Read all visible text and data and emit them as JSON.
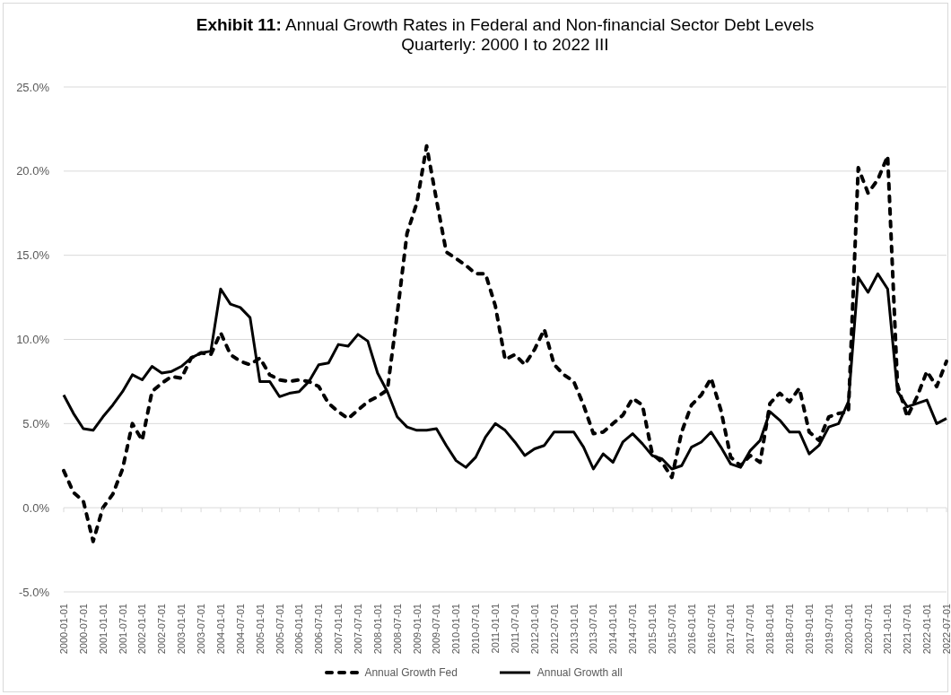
{
  "chart_data": {
    "type": "line",
    "title": "Exhibit 11: Annual Growth Rates in Federal and Non-financial Sector Debt Levels",
    "subtitle": "Quarterly: 2000 I to 2022 III",
    "categories": [
      "2000-01-01",
      null,
      "2000-07-01",
      null,
      "2001-01-01",
      null,
      "2001-07-01",
      null,
      "2002-01-01",
      null,
      "2002-07-01",
      null,
      "2003-01-01",
      null,
      "2003-07-01",
      null,
      "2004-01-01",
      null,
      "2004-07-01",
      null,
      "2005-01-01",
      null,
      "2005-07-01",
      null,
      "2006-01-01",
      null,
      "2006-07-01",
      null,
      "2007-01-01",
      null,
      "2007-07-01",
      null,
      "2008-01-01",
      null,
      "2008-07-01",
      null,
      "2009-01-01",
      null,
      "2009-07-01",
      null,
      "2010-01-01",
      null,
      "2010-07-01",
      null,
      "2011-01-01",
      null,
      "2011-07-01",
      null,
      "2012-01-01",
      null,
      "2012-07-01",
      null,
      "2013-01-01",
      null,
      "2013-07-01",
      null,
      "2014-01-01",
      null,
      "2014-07-01",
      null,
      "2015-01-01",
      null,
      "2015-07-01",
      null,
      "2016-01-01",
      null,
      "2016-07-01",
      null,
      "2017-01-01",
      null,
      "2017-07-01",
      null,
      "2018-01-01",
      null,
      "2018-07-01",
      null,
      "2019-01-01",
      null,
      "2019-07-01",
      null,
      "2020-01-01",
      null,
      "2020-07-01",
      null,
      "2021-01-01",
      null,
      "2021-07-01",
      null,
      "2022-01-01",
      null,
      "2022-07-01"
    ],
    "series": [
      {
        "name": "Annual Growth Fed",
        "color": "#000000",
        "line_style": "dashed",
        "values": [
          2.2,
          0.9,
          0.4,
          -2.0,
          0.0,
          0.8,
          2.3,
          5.0,
          4.0,
          6.9,
          7.4,
          7.8,
          7.7,
          8.9,
          9.2,
          9.1,
          10.4,
          9.1,
          8.7,
          8.5,
          8.9,
          7.9,
          7.6,
          7.5,
          7.6,
          7.5,
          7.2,
          6.2,
          5.7,
          5.3,
          5.8,
          6.3,
          6.6,
          7.0,
          11.5,
          16.3,
          18.1,
          21.5,
          18.3,
          15.2,
          14.8,
          14.4,
          13.9,
          13.9,
          12.0,
          8.8,
          9.1,
          8.5,
          9.4,
          10.6,
          8.5,
          7.9,
          7.5,
          6.1,
          4.4,
          4.5,
          5.0,
          5.5,
          6.5,
          6.1,
          3.2,
          2.7,
          1.8,
          4.5,
          6.1,
          6.7,
          7.7,
          5.8,
          3.0,
          2.5,
          3.1,
          2.7,
          6.2,
          6.8,
          6.3,
          7.1,
          4.5,
          4.0,
          5.4,
          5.6,
          5.7,
          20.2,
          18.7,
          19.5,
          20.9,
          7.3,
          5.4,
          6.6,
          8.1,
          7.2,
          8.7
        ]
      },
      {
        "name": "Annual Growth all",
        "color": "#000000",
        "line_style": "solid",
        "values": [
          6.7,
          5.6,
          4.7,
          4.6,
          5.4,
          6.1,
          6.9,
          7.9,
          7.6,
          8.4,
          8.0,
          8.1,
          8.4,
          8.9,
          9.2,
          9.3,
          13.0,
          12.1,
          11.9,
          11.3,
          7.5,
          7.5,
          6.6,
          6.8,
          6.9,
          7.5,
          8.5,
          8.6,
          9.7,
          9.6,
          10.3,
          9.9,
          8.0,
          6.9,
          5.4,
          4.8,
          4.6,
          4.6,
          4.7,
          3.7,
          2.8,
          2.4,
          3.0,
          4.2,
          5.0,
          4.6,
          3.9,
          3.1,
          3.5,
          3.7,
          4.5,
          4.5,
          4.5,
          3.6,
          2.3,
          3.2,
          2.7,
          3.9,
          4.4,
          3.8,
          3.1,
          2.9,
          2.3,
          2.5,
          3.6,
          3.9,
          4.5,
          3.6,
          2.6,
          2.4,
          3.4,
          4.0,
          5.7,
          5.2,
          4.5,
          4.5,
          3.2,
          3.7,
          4.8,
          5.0,
          6.3,
          13.7,
          12.8,
          13.9,
          13.0,
          6.9,
          6.0,
          6.2,
          6.4,
          5.0,
          5.3
        ]
      }
    ],
    "ylim": [
      -5,
      25
    ],
    "yticks": [
      {
        "value": -5,
        "label": "-5.0%"
      },
      {
        "value": 0,
        "label": "0.0%"
      },
      {
        "value": 5,
        "label": "5.0%"
      },
      {
        "value": 10,
        "label": "10.0%"
      },
      {
        "value": 15,
        "label": "15.0%"
      },
      {
        "value": 20,
        "label": "20.0%"
      },
      {
        "value": 25,
        "label": "25.0%"
      }
    ],
    "grid": "y",
    "legend": "bottom"
  }
}
